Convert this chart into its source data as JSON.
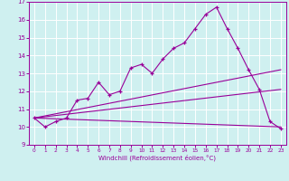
{
  "xlabel": "Windchill (Refroidissement éolien,°C)",
  "bg_color": "#cff0f0",
  "line_color": "#990099",
  "grid_color": "#ffffff",
  "xlim": [
    -0.5,
    23.5
  ],
  "ylim": [
    9,
    17
  ],
  "xticks": [
    0,
    1,
    2,
    3,
    4,
    5,
    6,
    7,
    8,
    9,
    10,
    11,
    12,
    13,
    14,
    15,
    16,
    17,
    18,
    19,
    20,
    21,
    22,
    23
  ],
  "yticks": [
    9,
    10,
    11,
    12,
    13,
    14,
    15,
    16,
    17
  ],
  "line1_x": [
    0,
    1,
    2,
    3,
    4,
    5,
    6,
    7,
    8,
    9,
    10,
    11,
    12,
    13,
    14,
    15,
    16,
    17,
    18,
    19,
    20,
    21,
    22,
    23
  ],
  "line1_y": [
    10.5,
    10.0,
    10.3,
    10.5,
    11.5,
    11.6,
    12.5,
    11.8,
    12.0,
    13.3,
    13.5,
    13.0,
    13.8,
    14.4,
    14.7,
    15.5,
    16.3,
    16.7,
    15.5,
    14.4,
    13.2,
    12.1,
    10.3,
    9.9
  ],
  "line2_x": [
    0,
    23
  ],
  "line2_y": [
    10.5,
    13.2
  ],
  "line3_x": [
    0,
    23
  ],
  "line3_y": [
    10.5,
    12.1
  ],
  "line4_x": [
    0,
    23
  ],
  "line4_y": [
    10.5,
    10.0
  ]
}
